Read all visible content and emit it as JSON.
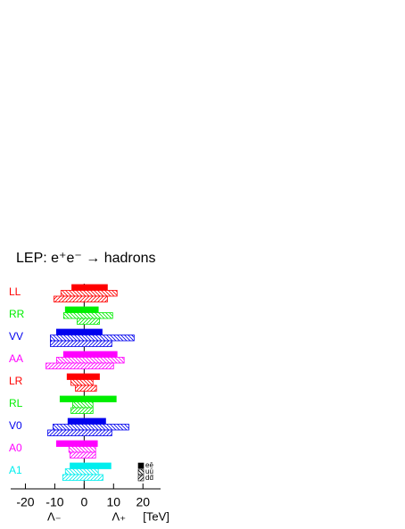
{
  "chart_data": {
    "type": "range_bar",
    "title": "LEP: e⁺e⁻ → hadrons",
    "categories": [
      "LL",
      "RR",
      "VV",
      "AA",
      "LR",
      "RL",
      "V0",
      "A0",
      "A1"
    ],
    "colors": [
      "#ff0000",
      "#00ee00",
      "#0000ee",
      "#ff00ff",
      "#ff0000",
      "#00ee00",
      "#0000ee",
      "#ff00ff",
      "#00eeee"
    ],
    "series": [
      {
        "name": "eē",
        "style": "solid",
        "values": [
          [
            -4.2,
            7.9
          ],
          [
            -6.4,
            4.8
          ],
          [
            -9.4,
            6.1
          ],
          [
            -7,
            11.2
          ],
          [
            -5.8,
            5.2
          ],
          [
            -8.2,
            10.9
          ],
          [
            -5.5,
            7.3
          ],
          [
            -9.4,
            4.5
          ],
          [
            -4.8,
            9.1
          ]
        ]
      },
      {
        "name": "uū",
        "style": "hatch-back",
        "values": [
          [
            -7.9,
            11.2
          ],
          [
            -7,
            9.7
          ],
          [
            -11.5,
            17
          ],
          [
            -9.4,
            13.6
          ],
          [
            -4.5,
            3
          ],
          [
            -3.9,
            3
          ],
          [
            -10.6,
            15.2
          ],
          [
            -5.2,
            3.9
          ],
          [
            -6.4,
            4.8
          ]
        ]
      },
      {
        "name": "dd̄",
        "style": "hatch-fwd",
        "values": [
          [
            -10.3,
            7.9
          ],
          [
            -2.4,
            5.2
          ],
          [
            -11.5,
            9.4
          ],
          [
            -13,
            10
          ],
          [
            -3,
            4.2
          ],
          [
            -4.5,
            3
          ],
          [
            -12.4,
            9.4
          ],
          [
            -4.8,
            3.9
          ],
          [
            -7.3,
            6.4
          ]
        ]
      }
    ],
    "xlim": [
      -25,
      26
    ],
    "xticks": [
      -20,
      -10,
      0,
      10,
      20
    ],
    "x_labels": [
      "Λ₋",
      "Λ₊",
      "[TeV]"
    ]
  }
}
